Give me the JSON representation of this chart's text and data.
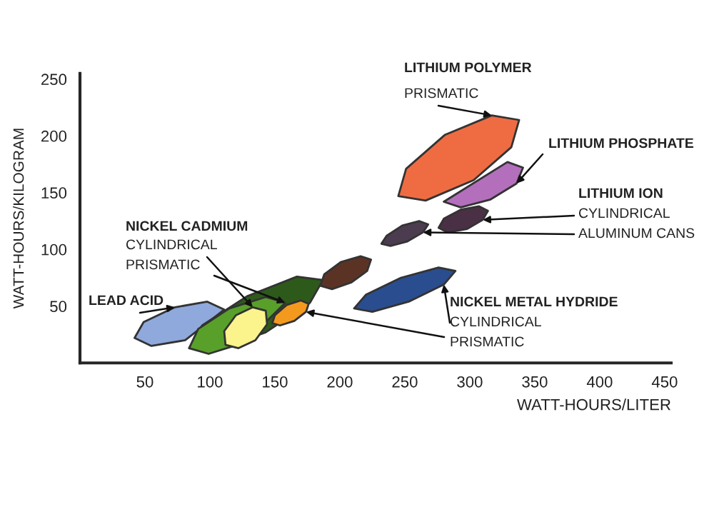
{
  "chart_data": {
    "type": "area",
    "xlabel": "WATT-HOURS/LITER",
    "ylabel": "WATT-HOURS/KILOGRAM",
    "xlim": [
      0,
      455
    ],
    "ylim": [
      0,
      255
    ],
    "xticks": [
      50,
      100,
      150,
      200,
      250,
      300,
      350,
      400,
      450
    ],
    "yticks": [
      50,
      100,
      150,
      200,
      250
    ],
    "series": [
      {
        "color": "#8fa9dc",
        "x": [
          111,
          98,
          73,
          49,
          42,
          55,
          81,
          null
        ],
        "values": [
          47,
          54,
          49,
          36,
          22,
          15,
          20,
          null
        ]
      },
      {
        "color": "#2d5a1a",
        "x": [
          187,
          167,
          129,
          94,
          84,
          104,
          143,
          177
        ],
        "values": [
          73,
          76,
          59,
          33,
          13,
          11,
          27,
          53
        ]
      },
      {
        "color": "#58a02a",
        "x": [
          158,
          143,
          115,
          91,
          84,
          99,
          127,
          null
        ],
        "values": [
          53,
          58,
          48,
          30,
          13,
          8,
          18,
          null
        ]
      },
      {
        "color": "#fbf38c",
        "x": [
          143,
          133,
          120,
          111,
          112,
          122,
          135,
          144
        ],
        "values": [
          46,
          49,
          42,
          28,
          16,
          13,
          20,
          34
        ]
      },
      {
        "color": "#f39a1e",
        "x": [
          176,
          170,
          159,
          150,
          148,
          154,
          165,
          174
        ],
        "values": [
          52,
          55,
          51,
          42,
          35,
          33,
          37,
          45
        ]
      },
      {
        "color": "#5b3325",
        "x": [
          224,
          216,
          201,
          188,
          185,
          194,
          209,
          221
        ],
        "values": [
          91,
          94,
          89,
          78,
          68,
          65,
          71,
          81
        ]
      },
      {
        "color": "#2a4d8f",
        "x": [
          289,
          276,
          247,
          220,
          211,
          225,
          253,
          280
        ],
        "values": [
          81,
          84,
          75,
          60,
          48,
          45,
          54,
          69
        ]
      },
      {
        "color": "#4b3c4f",
        "x": [
          268,
          261,
          248,
          236,
          232,
          239,
          252,
          264
        ],
        "values": [
          122,
          125,
          121,
          112,
          105,
          103,
          107,
          115
        ]
      },
      {
        "color": "#4a3045",
        "x": [
          314,
          307,
          293,
          280,
          276,
          283,
          298,
          310
        ],
        "values": [
          134,
          138,
          135,
          127,
          119,
          115,
          118,
          126
        ]
      },
      {
        "color": "#b36fbc",
        "x": [
          341,
          329,
          null,
          null,
          280,
          293,
          316,
          336
        ],
        "values": [
          172,
          177,
          null,
          null,
          142,
          137,
          144,
          158
        ]
      },
      {
        "color": "#ef6c43",
        "x": [
          338,
          317,
          281,
          251,
          245,
          266,
          303,
          332
        ],
        "values": [
          214,
          218,
          201,
          171,
          147,
          143,
          161,
          190
        ]
      }
    ],
    "annotations": [
      "LITHIUM POLYMER",
      {
        "text": "PRISMATIC",
        "x": 317,
        "y": 218
      },
      {
        "text": "LITHIUM PHOSPHATE",
        "x": 336,
        "y": 158
      },
      "LITHIUM ION",
      {
        "text": "CYLINDRICAL",
        "x": 310,
        "y": 126
      },
      {
        "text": "ALUMINUM CANS",
        "x": 264,
        "y": 115
      },
      "NICKEL METAL HYDRIDE",
      {
        "text": "CYLINDRICAL",
        "x": 280,
        "y": 69
      },
      {
        "text": "PRISMATIC",
        "x": 174,
        "y": 45
      },
      "NICKEL CADMIUM",
      {
        "text": "CYLINDRICAL",
        "x": 133,
        "y": 49
      },
      {
        "text": "PRISMATIC",
        "x": 158,
        "y": 53
      },
      {
        "text": "LEAD ACID",
        "x": 73,
        "y": 49
      }
    ]
  }
}
